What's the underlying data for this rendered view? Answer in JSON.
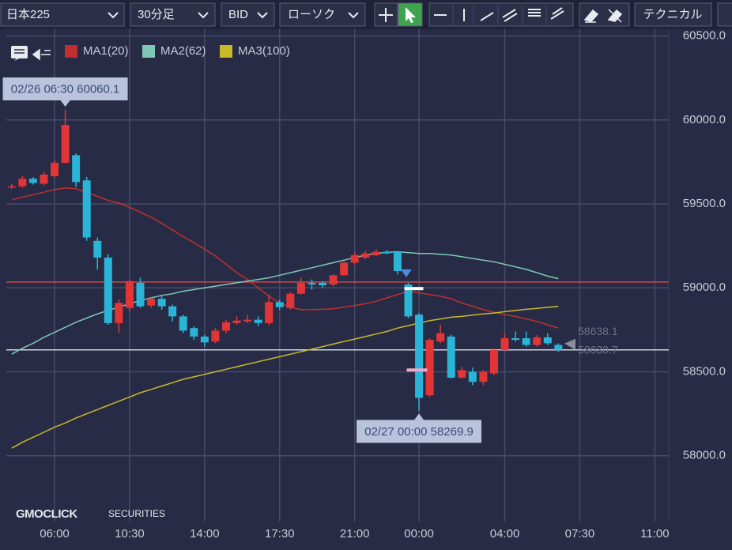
{
  "toolbar": {
    "symbol": "日本225",
    "interval": "30分足",
    "price_side": "BID",
    "chart_style": "ローソク",
    "technical": "テクニカル"
  },
  "watermark": {
    "brand": "GMOCLICK",
    "sub": "SECURITIES"
  },
  "chart_data": {
    "type": "candlestick",
    "up_color": "#e23636",
    "down_color": "#2ab4d8",
    "open": [
      59600,
      59605,
      59650,
      59620,
      59665,
      59745,
      59790,
      59640,
      59280,
      59180,
      58790,
      58880,
      59030,
      58895,
      58935,
      58890,
      58830,
      58760,
      58710,
      58680,
      58745,
      58790,
      58800,
      58810,
      58790,
      58915,
      58880,
      58965,
      59030,
      59030,
      59020,
      59075,
      59150,
      59180,
      59195,
      59215,
      59215,
      59020,
      58840,
      58360,
      58680,
      58710,
      58465,
      58500,
      58440,
      58490,
      58630,
      58700,
      58700,
      58660,
      58705,
      58660
    ],
    "high": [
      59620,
      59665,
      59660,
      59690,
      59760,
      60060.1,
      59800,
      59660,
      59300,
      59200,
      58930,
      59050,
      59060,
      58940,
      58950,
      58900,
      58840,
      58770,
      58720,
      58760,
      58810,
      58830,
      58840,
      58830,
      58960,
      58930,
      58975,
      59060,
      59050,
      59040,
      59080,
      59160,
      59210,
      59220,
      59230,
      59225,
      59220,
      59030,
      58850,
      58700,
      58780,
      58720,
      58530,
      58525,
      58510,
      58640,
      58730,
      58740,
      58740,
      58720,
      58730,
      58670
    ],
    "low": [
      59590,
      59595,
      59615,
      59610,
      59655,
      59740,
      59600,
      59280,
      59110,
      58780,
      58730,
      58860,
      58880,
      58880,
      58870,
      58800,
      58730,
      58690,
      58650,
      58670,
      58730,
      58780,
      58790,
      58770,
      58780,
      58870,
      58870,
      58960,
      58990,
      59000,
      59010,
      59070,
      59140,
      59170,
      59190,
      59200,
      59080,
      58820,
      58269.9,
      58350,
      58670,
      58460,
      58460,
      58420,
      58420,
      58480,
      58620,
      58680,
      58650,
      58650,
      58660,
      58620
    ],
    "close": [
      59605,
      59650,
      59625,
      59675,
      59745,
      59970,
      59630,
      59300,
      59180,
      58790,
      58910,
      59040,
      58890,
      58935,
      58890,
      58830,
      58745,
      58710,
      58675,
      58745,
      58795,
      58805,
      58810,
      58790,
      58915,
      58885,
      58965,
      59030,
      59020,
      59015,
      59075,
      59150,
      59195,
      59205,
      59215,
      59205,
      59100,
      58830,
      58345,
      58690,
      58730,
      58465,
      58510,
      58440,
      58500,
      58630,
      58700,
      58690,
      58660,
      58705,
      58670,
      58630.7
    ],
    "series": [
      {
        "name": "MA1(20)",
        "color": "#c0302f",
        "values": [
          59525,
          59540,
          59555,
          59570,
          59585,
          59595,
          59590,
          59570,
          59545,
          59520,
          59505,
          59480,
          59450,
          59420,
          59385,
          59345,
          59305,
          59270,
          59230,
          59190,
          59140,
          59090,
          59050,
          59000,
          58950,
          58910,
          58885,
          58870,
          58870,
          58872,
          58875,
          58885,
          58895,
          58905,
          58920,
          58940,
          58960,
          58980,
          58970,
          58960,
          58950,
          58935,
          58910,
          58890,
          58870,
          58855,
          58840,
          58830,
          58815,
          58800,
          58780,
          58760
        ]
      },
      {
        "name": "MA2(62)",
        "color": "#7ec8b8",
        "values": [
          58605,
          58640,
          58670,
          58705,
          58735,
          58765,
          58795,
          58820,
          58845,
          58865,
          58885,
          58905,
          58925,
          58940,
          58955,
          58965,
          58980,
          58990,
          59000,
          59010,
          59020,
          59030,
          59040,
          59050,
          59060,
          59075,
          59090,
          59105,
          59120,
          59135,
          59150,
          59165,
          59180,
          59195,
          59205,
          59212,
          59215,
          59210,
          59205,
          59205,
          59200,
          59195,
          59185,
          59175,
          59165,
          59155,
          59140,
          59125,
          59110,
          59090,
          59070,
          59055
        ]
      },
      {
        "name": "MA3(100)",
        "color": "#c9b92a",
        "values": [
          58045,
          58080,
          58110,
          58140,
          58170,
          58195,
          58225,
          58250,
          58275,
          58300,
          58325,
          58350,
          58375,
          58395,
          58415,
          58435,
          58455,
          58470,
          58485,
          58500,
          58515,
          58530,
          58545,
          58560,
          58575,
          58590,
          58605,
          58620,
          58635,
          58650,
          58665,
          58680,
          58695,
          58710,
          58725,
          58740,
          58760,
          58775,
          58790,
          58805,
          58815,
          58825,
          58830,
          58838,
          58845,
          58850,
          58858,
          58865,
          58872,
          58878,
          58884,
          58890
        ]
      }
    ],
    "ylim": [
      57608,
      60545
    ],
    "yticks": [
      {
        "value": 58000,
        "label": "58000.0"
      },
      {
        "value": 58500,
        "label": "58500.0"
      },
      {
        "value": 59000,
        "label": "59000.0"
      },
      {
        "value": 59500,
        "label": "59500.0"
      },
      {
        "value": 60000,
        "label": "60000.0"
      },
      {
        "value": 60500,
        "label": "60500.0"
      }
    ],
    "xlim": [
      -0.5,
      61.3
    ],
    "xticks": [
      {
        "value": 4,
        "label": "06:00"
      },
      {
        "value": 11,
        "label": "10:30"
      },
      {
        "value": 18,
        "label": "14:00"
      },
      {
        "value": 25,
        "label": "17:30"
      },
      {
        "value": 32,
        "label": "21:00"
      },
      {
        "value": 38,
        "label": "00:00"
      },
      {
        "value": 46,
        "label": "04:00"
      },
      {
        "value": 53,
        "label": "07:30"
      },
      {
        "value": 60,
        "label": "11:00"
      }
    ],
    "grid": true,
    "annotations": [
      {
        "text": "02/26 06:30 60060.1"
      },
      {
        "text": "02/27 00:00 58269.9"
      }
    ],
    "position_line": {
      "value": 59035,
      "color": "#c94a4a"
    },
    "ask": 58638.1,
    "bid": 58630.7
  }
}
